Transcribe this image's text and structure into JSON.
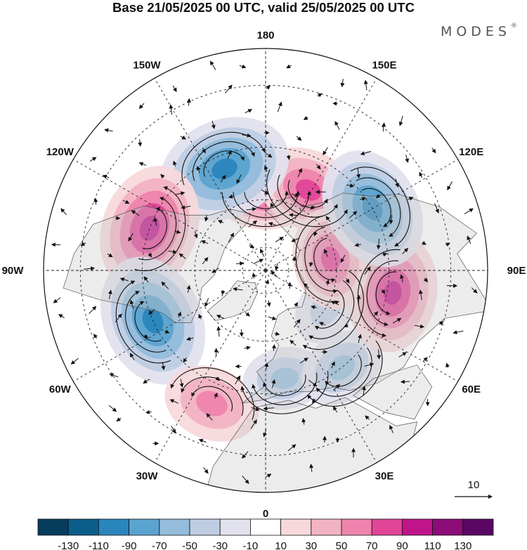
{
  "title": "Base 21/05/2025 00 UTC, valid 25/05/2025 00 UTC",
  "brand": {
    "name": "MODES",
    "mark": "®"
  },
  "map": {
    "projection": "north-polar-stereographic",
    "longitude_labels": [
      {
        "text": "180",
        "lon": 180
      },
      {
        "text": "150E",
        "lon": 150
      },
      {
        "text": "120E",
        "lon": 120
      },
      {
        "text": "90E",
        "lon": 90
      },
      {
        "text": "60E",
        "lon": 60
      },
      {
        "text": "30E",
        "lon": 30
      },
      {
        "text": "0",
        "lon": 0
      },
      {
        "text": "30W",
        "lon": -30
      },
      {
        "text": "60W",
        "lon": -60
      },
      {
        "text": "90W",
        "lon": -90
      },
      {
        "text": "120W",
        "lon": -120
      },
      {
        "text": "150W",
        "lon": -150
      }
    ],
    "vector_reference": "10",
    "anomaly_centers": [
      {
        "sign": "positive",
        "lon": 180,
        "lat": 57,
        "value": 60
      },
      {
        "sign": "positive",
        "lon": 152,
        "lat": 52,
        "value": 65
      },
      {
        "sign": "negative",
        "lon": -158,
        "lat": 45,
        "value": -95
      },
      {
        "sign": "positive",
        "lon": -110,
        "lat": 40,
        "value": 90
      },
      {
        "sign": "negative",
        "lon": -66,
        "lat": 40,
        "value": -95
      },
      {
        "sign": "positive",
        "lon": -22,
        "lat": 33,
        "value": 55
      },
      {
        "sign": "negative",
        "lon": 10,
        "lat": 45,
        "value": -40
      },
      {
        "sign": "negative",
        "lon": 38,
        "lat": 40,
        "value": -45
      },
      {
        "sign": "negative",
        "lon": 58,
        "lat": 60,
        "value": -30
      },
      {
        "sign": "positive",
        "lon": 80,
        "lat": 38,
        "value": 80
      },
      {
        "sign": "positive",
        "lon": 100,
        "lat": 62,
        "value": 60
      },
      {
        "sign": "negative",
        "lon": 120,
        "lat": 40,
        "value": -85
      }
    ]
  },
  "colorbar": {
    "colors": [
      "#063c5c",
      "#0b5d8a",
      "#2a85bd",
      "#5ba3cf",
      "#94bcdb",
      "#bfcde4",
      "#e2e2ee",
      "#ffffff",
      "#f7d9db",
      "#f2b3c4",
      "#ee84ad",
      "#e04598",
      "#c0158a",
      "#8c0c78",
      "#5a0663"
    ],
    "labels": [
      "-130",
      "-110",
      "-90",
      "-70",
      "-50",
      "-30",
      "-10",
      "10",
      "30",
      "50",
      "70",
      "90",
      "110",
      "130"
    ]
  }
}
